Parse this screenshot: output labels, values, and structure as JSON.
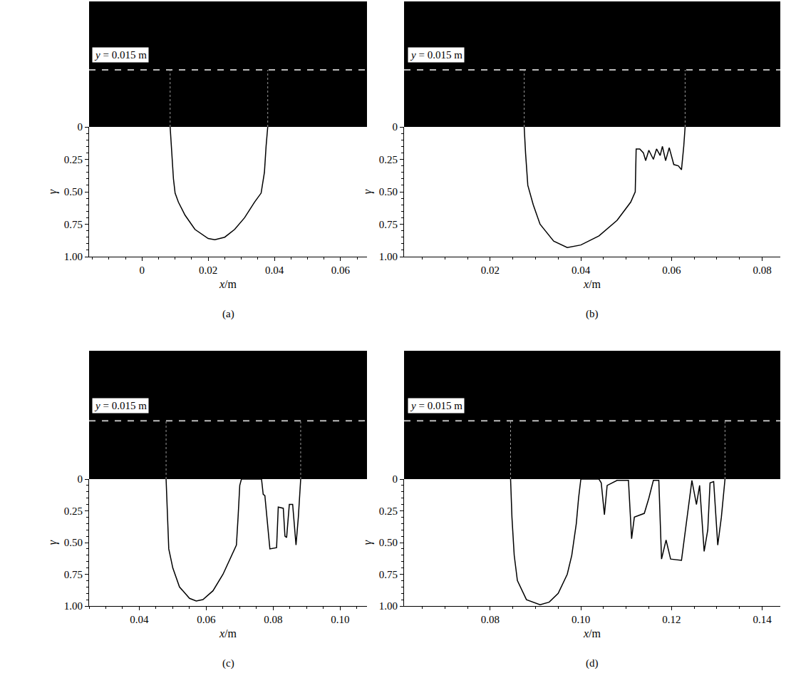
{
  "chart_data": [
    {
      "type": "line",
      "panel_label": "(a)",
      "x_label": "x/m",
      "y_label": "γ",
      "annotation": "y = 0.015 m",
      "slice_y": 0.015,
      "image_ylim": [
        0,
        0.033
      ],
      "color": "#000000",
      "x": [
        0.0085,
        0.009,
        0.0095,
        0.01,
        0.011,
        0.013,
        0.016,
        0.02,
        0.022,
        0.025,
        0.028,
        0.031,
        0.034,
        0.036,
        0.037,
        0.0375,
        0.038
      ],
      "values": [
        0,
        0.2,
        0.4,
        0.51,
        0.58,
        0.68,
        0.79,
        0.86,
        0.87,
        0.85,
        0.79,
        0.7,
        0.58,
        0.51,
        0.35,
        0.15,
        0
      ],
      "xlim": [
        -0.016,
        0.068
      ],
      "xticks": [
        0,
        0.02,
        0.04,
        0.06
      ],
      "ylim": [
        1,
        0
      ],
      "yticks": [
        0,
        0.25,
        {
          "value": 0.5,
          "label": "0.50"
        },
        0.75,
        {
          "value": 1,
          "label": "1.00"
        }
      ]
    },
    {
      "type": "line",
      "panel_label": "(b)",
      "x_label": "x/m",
      "y_label": "γ",
      "annotation": "y = 0.015 m",
      "slice_y": 0.015,
      "image_ylim": [
        0,
        0.033
      ],
      "color": "#000000",
      "x": [
        0.0275,
        0.0278,
        0.0283,
        0.0295,
        0.031,
        0.034,
        0.037,
        0.04,
        0.044,
        0.048,
        0.051,
        0.052,
        0.0522,
        0.053,
        0.0538,
        0.0543,
        0.055,
        0.056,
        0.0567,
        0.0575,
        0.058,
        0.0587,
        0.0595,
        0.0605,
        0.0615,
        0.0622,
        0.0627,
        0.063
      ],
      "values": [
        0,
        0.2,
        0.45,
        0.6,
        0.75,
        0.88,
        0.93,
        0.91,
        0.84,
        0.72,
        0.58,
        0.5,
        0.17,
        0.17,
        0.2,
        0.26,
        0.18,
        0.25,
        0.17,
        0.22,
        0.15,
        0.26,
        0.16,
        0.29,
        0.3,
        0.33,
        0.15,
        0
      ],
      "xlim": [
        0.001,
        0.084
      ],
      "xticks": [
        0.02,
        0.04,
        0.06,
        0.08
      ],
      "ylim": [
        1,
        0
      ],
      "yticks": [
        0,
        0.25,
        {
          "value": 0.5,
          "label": "0.50"
        },
        0.75,
        {
          "value": 1,
          "label": "1.00"
        }
      ]
    },
    {
      "type": "line",
      "panel_label": "(c)",
      "x_label": "x/m",
      "y_label": "γ",
      "annotation": "y = 0.015 m",
      "slice_y": 0.015,
      "image_ylim": [
        0,
        0.033
      ],
      "color": "#000000",
      "x": [
        0.048,
        0.0483,
        0.0488,
        0.05,
        0.052,
        0.055,
        0.057,
        0.059,
        0.062,
        0.065,
        0.068,
        0.069,
        0.0695,
        0.07,
        0.0705,
        0.0765,
        0.077,
        0.0775,
        0.079,
        0.081,
        0.0815,
        0.083,
        0.0835,
        0.084,
        0.0848,
        0.0858,
        0.0868,
        0.0875,
        0.0882
      ],
      "values": [
        0,
        0.25,
        0.55,
        0.7,
        0.85,
        0.94,
        0.96,
        0.95,
        0.88,
        0.75,
        0.58,
        0.52,
        0.3,
        0.05,
        0,
        0,
        0.12,
        0.13,
        0.55,
        0.54,
        0.22,
        0.23,
        0.45,
        0.46,
        0.2,
        0.2,
        0.52,
        0.3,
        0
      ],
      "xlim": [
        0.025,
        0.108
      ],
      "xticks": [
        0.04,
        0.06,
        0.08,
        {
          "value": 0.1,
          "label": "0.10"
        }
      ],
      "ylim": [
        1,
        0
      ],
      "yticks": [
        0,
        0.25,
        {
          "value": 0.5,
          "label": "0.50"
        },
        0.75,
        {
          "value": 1,
          "label": "1.00"
        }
      ]
    },
    {
      "type": "line",
      "panel_label": "(d)",
      "x_label": "x/m",
      "y_label": "γ",
      "annotation": "y = 0.015 m",
      "slice_y": 0.015,
      "image_ylim": [
        0,
        0.033
      ],
      "color": "#000000",
      "x": [
        0.0845,
        0.0848,
        0.0853,
        0.086,
        0.088,
        0.091,
        0.093,
        0.095,
        0.097,
        0.098,
        0.099,
        0.0995,
        0.1,
        0.104,
        0.1045,
        0.1052,
        0.1058,
        0.108,
        0.1105,
        0.1112,
        0.1118,
        0.114,
        0.115,
        0.116,
        0.1172,
        0.1178,
        0.1188,
        0.1198,
        0.1222,
        0.1235,
        0.1245,
        0.1255,
        0.1262,
        0.1272,
        0.128,
        0.1285,
        0.1293,
        0.1302,
        0.131,
        0.1318
      ],
      "values": [
        0,
        0.3,
        0.6,
        0.8,
        0.95,
        0.99,
        0.97,
        0.9,
        0.75,
        0.6,
        0.35,
        0.15,
        0,
        0,
        0.03,
        0.28,
        0.05,
        0.01,
        0.01,
        0.47,
        0.3,
        0.27,
        0.15,
        0.01,
        0.01,
        0.63,
        0.48,
        0.63,
        0.64,
        0.3,
        0.01,
        0.2,
        0.05,
        0.57,
        0.4,
        0.03,
        0.02,
        0.52,
        0.3,
        0
      ],
      "xlim": [
        0.061,
        0.144
      ],
      "xticks": [
        0.08,
        {
          "value": 0.1,
          "label": "0.10"
        },
        0.12,
        0.14
      ],
      "ylim": [
        1,
        0
      ],
      "yticks": [
        0,
        0.25,
        {
          "value": 0.5,
          "label": "0.50"
        },
        0.75,
        {
          "value": 1,
          "label": "1.00"
        }
      ]
    }
  ]
}
